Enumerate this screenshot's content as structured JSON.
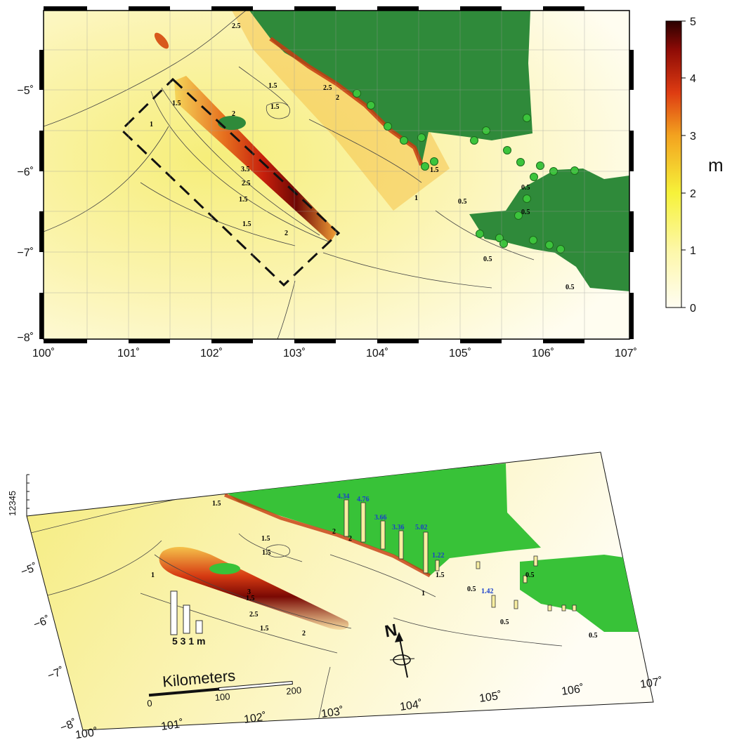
{
  "top_map": {
    "x_ticks": [
      "100˚",
      "101˚",
      "102˚",
      "103˚",
      "104˚",
      "105˚",
      "106˚",
      "107˚"
    ],
    "y_ticks": [
      "−5˚",
      "−6˚",
      "−7˚",
      "−8˚"
    ],
    "contour_labels": [
      "2.5",
      "1.5",
      "1.5",
      "1.5",
      "2",
      "2.5",
      "2",
      "1",
      "3.5",
      "2.5",
      "1.5",
      "1.5",
      "2",
      "1.5",
      "1",
      "0.5",
      "0.5",
      "0.5",
      "0.5",
      "0.5"
    ],
    "colorbar": {
      "unit": "m",
      "ticks": [
        "5",
        "4",
        "3",
        "2",
        "1",
        "0"
      ],
      "stops": [
        "#fffdf2",
        "#fdf7a8",
        "#f6f23a",
        "#f3a31f",
        "#de3c12",
        "#8e0b06",
        "#2a0000"
      ]
    },
    "colors": {
      "land": "#2f8a3a",
      "observation_points": "#3cc43c",
      "sea_low": "#fffbe3",
      "sea_mid": "#f8f09a"
    }
  },
  "bottom_map": {
    "x_ticks": [
      "100˚",
      "101˚",
      "102˚",
      "103˚",
      "104˚",
      "105˚",
      "106˚",
      "107˚"
    ],
    "y_ticks": [
      "−5˚",
      "−6˚",
      "−7˚",
      "−8˚"
    ],
    "z_axis_label": "12345",
    "bar_values": [
      "4.34",
      "4.76",
      "3.66",
      "3.36",
      "5.02",
      "1.22",
      "1.42"
    ],
    "legend_bars": "5 3 1 m",
    "scale_title": "Kilometers",
    "scale_ticks": [
      "0",
      "100",
      "200"
    ],
    "north_label": "N",
    "contour_labels": [
      "1",
      "1.5",
      "2.5",
      "1.5",
      "1.5",
      "2",
      "3",
      "1.5",
      "2",
      "1.5",
      "1.5",
      "2",
      "0.5",
      "0.5",
      "0.5",
      "0.5",
      "1"
    ],
    "colors": {
      "land": "#38c238"
    }
  }
}
